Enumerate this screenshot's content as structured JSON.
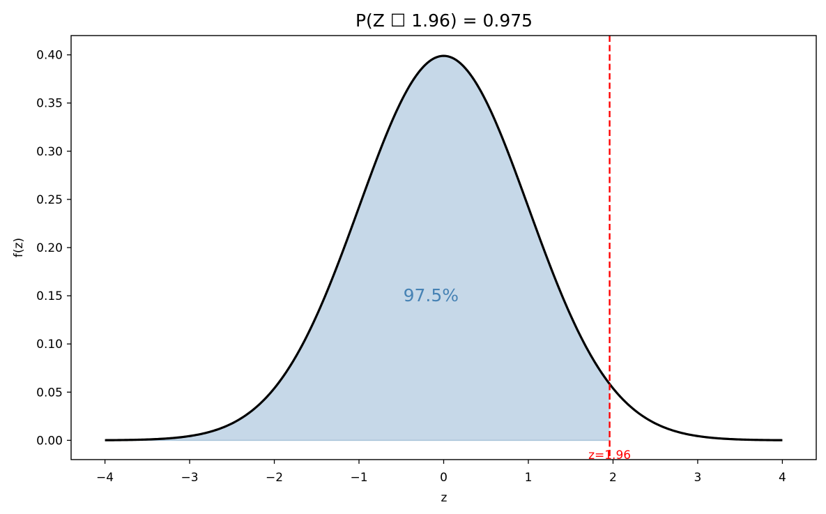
{
  "chart_data": {
    "type": "area",
    "title": "P(Z ☐ 1.96) = 0.975",
    "xlabel": "z",
    "ylabel": "f(z)",
    "xlim": [
      -4.4,
      4.4
    ],
    "ylim": [
      -0.02,
      0.42
    ],
    "xticks": [
      -4,
      -3,
      -2,
      -1,
      0,
      1,
      2,
      3,
      4
    ],
    "xtick_labels": [
      "−4",
      "−3",
      "−2",
      "−1",
      "0",
      "1",
      "2",
      "3",
      "4"
    ],
    "yticks": [
      0.0,
      0.05,
      0.1,
      0.15,
      0.2,
      0.25,
      0.3,
      0.35,
      0.4
    ],
    "ytick_labels": [
      "0.00",
      "0.05",
      "0.10",
      "0.15",
      "0.20",
      "0.25",
      "0.30",
      "0.35",
      "0.40"
    ],
    "series": [
      {
        "kind": "line",
        "function": "standard_normal_pdf",
        "x_range": [
          -4,
          4
        ],
        "color": "#000000"
      },
      {
        "kind": "area",
        "function": "standard_normal_pdf",
        "x_range": [
          -4,
          1.96
        ],
        "color": "#c6d8e8"
      }
    ],
    "threshold": {
      "x": 1.96,
      "color": "#ff0000",
      "style": "dashed",
      "label": "z=1.96"
    },
    "annotation": {
      "text": "97.5%",
      "x": -0.15,
      "y": 0.15,
      "color": "#4682b4"
    },
    "grid": false
  }
}
